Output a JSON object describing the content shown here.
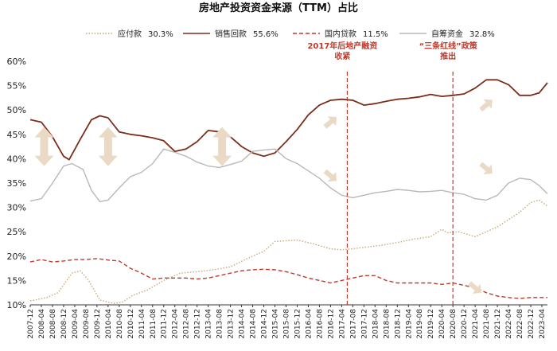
{
  "chart_data": {
    "type": "line",
    "title": "房地产投资资金来源（TTM）占比",
    "ylim": [
      0.1,
      0.6
    ],
    "yticks": [
      "10%",
      "15%",
      "20%",
      "25%",
      "30%",
      "35%",
      "40%",
      "45%",
      "50%",
      "55%",
      "60%"
    ],
    "grid": false,
    "legend_position": "top",
    "x_start": "2007-12",
    "x_end": "2023-06",
    "x_tick_labels": [
      "2007-12",
      "2008-04",
      "2008-08",
      "2008-12",
      "2009-04",
      "2009-08",
      "2009-12",
      "2010-04",
      "2010-08",
      "2010-12",
      "2011-04",
      "2011-08",
      "2011-12",
      "2012-04",
      "2012-08",
      "2012-12",
      "2013-04",
      "2013-08",
      "2013-12",
      "2014-04",
      "2014-08",
      "2014-12",
      "2015-04",
      "2015-08",
      "2015-12",
      "2016-04",
      "2016-08",
      "2016-12",
      "2017-04",
      "2017-08",
      "2017-12",
      "2018-04",
      "2018-08",
      "2018-12",
      "2019-04",
      "2019-08",
      "2019-12",
      "2020-04",
      "2020-08",
      "2020-12",
      "2021-04",
      "2021-08",
      "2021-12",
      "2022-04",
      "2022-08",
      "2022-12",
      "2023-04"
    ],
    "series": [
      {
        "name": "应付款",
        "legend_value": "30.3%",
        "color": "#c9a978",
        "dash": "dotted",
        "points": [
          [
            "2007-12",
            0.108
          ],
          [
            "2008-06",
            0.115
          ],
          [
            "2008-10",
            0.125
          ],
          [
            "2009-03",
            0.165
          ],
          [
            "2009-06",
            0.17
          ],
          [
            "2009-09",
            0.15
          ],
          [
            "2010-01",
            0.11
          ],
          [
            "2010-06",
            0.103
          ],
          [
            "2010-09",
            0.105
          ],
          [
            "2011-01",
            0.12
          ],
          [
            "2011-06",
            0.13
          ],
          [
            "2011-12",
            0.15
          ],
          [
            "2012-06",
            0.165
          ],
          [
            "2012-12",
            0.168
          ],
          [
            "2013-06",
            0.172
          ],
          [
            "2013-12",
            0.178
          ],
          [
            "2014-06",
            0.195
          ],
          [
            "2014-12",
            0.21
          ],
          [
            "2015-04",
            0.23
          ],
          [
            "2015-12",
            0.233
          ],
          [
            "2016-06",
            0.225
          ],
          [
            "2016-12",
            0.215
          ],
          [
            "2017-04",
            0.213
          ],
          [
            "2017-08",
            0.215
          ],
          [
            "2017-12",
            0.218
          ],
          [
            "2018-06",
            0.222
          ],
          [
            "2018-12",
            0.228
          ],
          [
            "2019-06",
            0.235
          ],
          [
            "2019-12",
            0.24
          ],
          [
            "2020-04",
            0.255
          ],
          [
            "2020-06",
            0.248
          ],
          [
            "2020-10",
            0.25
          ],
          [
            "2021-01",
            0.245
          ],
          [
            "2021-04",
            0.24
          ],
          [
            "2021-08",
            0.25
          ],
          [
            "2021-12",
            0.26
          ],
          [
            "2022-04",
            0.275
          ],
          [
            "2022-08",
            0.29
          ],
          [
            "2022-12",
            0.31
          ],
          [
            "2023-03",
            0.315
          ],
          [
            "2023-06",
            0.303
          ]
        ]
      },
      {
        "name": "销售回款",
        "legend_value": "55.6%",
        "color": "#7b2e1a",
        "dash": "solid",
        "points": [
          [
            "2007-12",
            0.48
          ],
          [
            "2008-04",
            0.475
          ],
          [
            "2008-08",
            0.445
          ],
          [
            "2008-12",
            0.405
          ],
          [
            "2009-02",
            0.398
          ],
          [
            "2009-06",
            0.44
          ],
          [
            "2009-10",
            0.48
          ],
          [
            "2010-01",
            0.488
          ],
          [
            "2010-04",
            0.484
          ],
          [
            "2010-08",
            0.455
          ],
          [
            "2010-12",
            0.45
          ],
          [
            "2011-04",
            0.447
          ],
          [
            "2011-08",
            0.443
          ],
          [
            "2011-12",
            0.437
          ],
          [
            "2012-04",
            0.415
          ],
          [
            "2012-08",
            0.42
          ],
          [
            "2012-12",
            0.435
          ],
          [
            "2013-04",
            0.458
          ],
          [
            "2013-08",
            0.455
          ],
          [
            "2013-12",
            0.445
          ],
          [
            "2014-04",
            0.425
          ],
          [
            "2014-08",
            0.412
          ],
          [
            "2014-12",
            0.405
          ],
          [
            "2015-04",
            0.412
          ],
          [
            "2015-08",
            0.435
          ],
          [
            "2015-12",
            0.46
          ],
          [
            "2016-04",
            0.49
          ],
          [
            "2016-08",
            0.51
          ],
          [
            "2016-12",
            0.52
          ],
          [
            "2017-04",
            0.522
          ],
          [
            "2017-08",
            0.52
          ],
          [
            "2017-12",
            0.51
          ],
          [
            "2018-04",
            0.513
          ],
          [
            "2018-08",
            0.518
          ],
          [
            "2018-12",
            0.522
          ],
          [
            "2019-04",
            0.524
          ],
          [
            "2019-08",
            0.527
          ],
          [
            "2019-12",
            0.532
          ],
          [
            "2020-04",
            0.528
          ],
          [
            "2020-08",
            0.53
          ],
          [
            "2020-12",
            0.533
          ],
          [
            "2021-04",
            0.545
          ],
          [
            "2021-08",
            0.562
          ],
          [
            "2021-12",
            0.562
          ],
          [
            "2022-04",
            0.552
          ],
          [
            "2022-08",
            0.53
          ],
          [
            "2022-12",
            0.53
          ],
          [
            "2023-03",
            0.535
          ],
          [
            "2023-06",
            0.556
          ]
        ]
      },
      {
        "name": "国内贷款",
        "legend_value": "11.5%",
        "color": "#c0392b",
        "dash": "dashed",
        "points": [
          [
            "2007-12",
            0.188
          ],
          [
            "2008-04",
            0.193
          ],
          [
            "2008-08",
            0.188
          ],
          [
            "2008-12",
            0.19
          ],
          [
            "2009-04",
            0.193
          ],
          [
            "2009-08",
            0.193
          ],
          [
            "2009-12",
            0.195
          ],
          [
            "2010-04",
            0.192
          ],
          [
            "2010-08",
            0.19
          ],
          [
            "2010-12",
            0.175
          ],
          [
            "2011-04",
            0.165
          ],
          [
            "2011-08",
            0.153
          ],
          [
            "2011-12",
            0.155
          ],
          [
            "2012-04",
            0.155
          ],
          [
            "2012-08",
            0.155
          ],
          [
            "2012-12",
            0.153
          ],
          [
            "2013-04",
            0.155
          ],
          [
            "2013-08",
            0.16
          ],
          [
            "2013-12",
            0.165
          ],
          [
            "2014-04",
            0.17
          ],
          [
            "2014-08",
            0.172
          ],
          [
            "2014-12",
            0.173
          ],
          [
            "2015-04",
            0.172
          ],
          [
            "2015-08",
            0.168
          ],
          [
            "2015-12",
            0.162
          ],
          [
            "2016-04",
            0.155
          ],
          [
            "2016-08",
            0.15
          ],
          [
            "2016-12",
            0.145
          ],
          [
            "2017-04",
            0.15
          ],
          [
            "2017-08",
            0.155
          ],
          [
            "2017-12",
            0.16
          ],
          [
            "2018-04",
            0.16
          ],
          [
            "2018-08",
            0.15
          ],
          [
            "2018-12",
            0.145
          ],
          [
            "2019-04",
            0.145
          ],
          [
            "2019-08",
            0.145
          ],
          [
            "2019-12",
            0.145
          ],
          [
            "2020-04",
            0.142
          ],
          [
            "2020-08",
            0.145
          ],
          [
            "2020-12",
            0.14
          ],
          [
            "2021-04",
            0.135
          ],
          [
            "2021-08",
            0.125
          ],
          [
            "2021-12",
            0.118
          ],
          [
            "2022-04",
            0.115
          ],
          [
            "2022-08",
            0.113
          ],
          [
            "2022-12",
            0.115
          ],
          [
            "2023-03",
            0.115
          ],
          [
            "2023-06",
            0.115
          ]
        ]
      },
      {
        "name": "自筹资金",
        "legend_value": "32.8%",
        "color": "#b8b8b8",
        "dash": "solid",
        "points": [
          [
            "2007-12",
            0.313
          ],
          [
            "2008-04",
            0.318
          ],
          [
            "2008-08",
            0.35
          ],
          [
            "2008-12",
            0.385
          ],
          [
            "2009-03",
            0.39
          ],
          [
            "2009-07",
            0.378
          ],
          [
            "2009-10",
            0.335
          ],
          [
            "2010-01",
            0.312
          ],
          [
            "2010-04",
            0.315
          ],
          [
            "2010-08",
            0.34
          ],
          [
            "2010-12",
            0.363
          ],
          [
            "2011-04",
            0.372
          ],
          [
            "2011-08",
            0.39
          ],
          [
            "2011-12",
            0.42
          ],
          [
            "2012-04",
            0.413
          ],
          [
            "2012-08",
            0.405
          ],
          [
            "2012-12",
            0.393
          ],
          [
            "2013-04",
            0.385
          ],
          [
            "2013-08",
            0.382
          ],
          [
            "2013-12",
            0.388
          ],
          [
            "2014-04",
            0.395
          ],
          [
            "2014-08",
            0.415
          ],
          [
            "2014-12",
            0.418
          ],
          [
            "2015-04",
            0.42
          ],
          [
            "2015-08",
            0.4
          ],
          [
            "2015-12",
            0.39
          ],
          [
            "2016-04",
            0.375
          ],
          [
            "2016-08",
            0.36
          ],
          [
            "2016-12",
            0.34
          ],
          [
            "2017-04",
            0.325
          ],
          [
            "2017-08",
            0.32
          ],
          [
            "2017-12",
            0.325
          ],
          [
            "2018-04",
            0.33
          ],
          [
            "2018-08",
            0.333
          ],
          [
            "2018-12",
            0.337
          ],
          [
            "2019-04",
            0.335
          ],
          [
            "2019-08",
            0.332
          ],
          [
            "2019-12",
            0.333
          ],
          [
            "2020-04",
            0.335
          ],
          [
            "2020-08",
            0.33
          ],
          [
            "2020-12",
            0.327
          ],
          [
            "2021-04",
            0.318
          ],
          [
            "2021-08",
            0.315
          ],
          [
            "2021-12",
            0.325
          ],
          [
            "2022-04",
            0.35
          ],
          [
            "2022-08",
            0.36
          ],
          [
            "2022-12",
            0.357
          ],
          [
            "2023-03",
            0.345
          ],
          [
            "2023-06",
            0.328
          ]
        ]
      }
    ],
    "annotations": [
      {
        "date": "2017-06",
        "lines": [
          "2017年后地产融资",
          "收紧"
        ],
        "color": "#c0392b"
      },
      {
        "date": "2020-08",
        "lines": [
          "“三条红线”政策",
          "推出"
        ],
        "color": "#c0392b"
      }
    ],
    "arrow_color": "#ead9c4",
    "double_arrow_dates": [
      "2008-05",
      "2010-04",
      "2013-09"
    ],
    "single_arrows": [
      {
        "date": "2016-12",
        "value": 0.475,
        "direction": "up"
      },
      {
        "date": "2016-12",
        "value": 0.365,
        "direction": "down"
      },
      {
        "date": "2021-04",
        "value": 0.135,
        "direction": "down"
      },
      {
        "date": "2021-08",
        "value": 0.51,
        "direction": "up"
      },
      {
        "date": "2021-08",
        "value": 0.38,
        "direction": "down"
      }
    ]
  }
}
